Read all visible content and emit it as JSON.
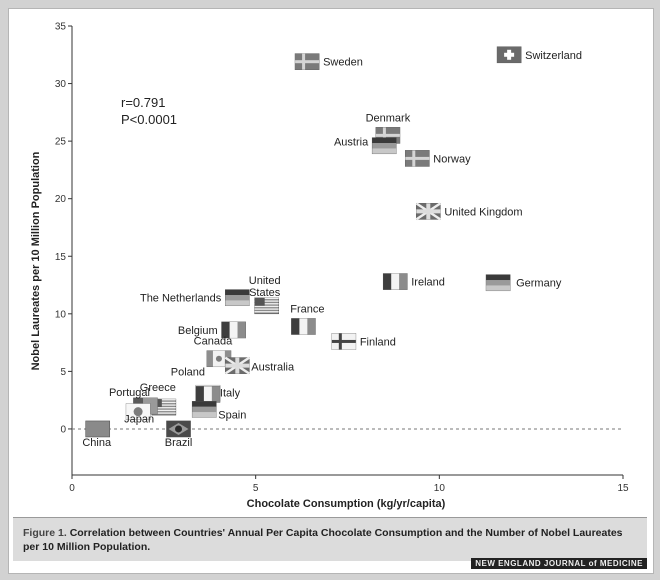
{
  "chart_data": {
    "type": "scatter",
    "xlabel": "Chocolate Consumption (kg/yr/capita)",
    "ylabel": "Nobel Laureates per 10 Million Population",
    "xlim": [
      0,
      15
    ],
    "ylim": [
      -4,
      35
    ],
    "x_ticks": [
      0,
      5,
      10,
      15
    ],
    "y_ticks": [
      0,
      5,
      10,
      15,
      20,
      25,
      30,
      35
    ],
    "zero_line": "dashed",
    "grid": false,
    "annotation": {
      "r": "r=0.791",
      "p": "P<0.0001"
    },
    "points": [
      {
        "name": "Switzerland",
        "x": 11.9,
        "y": 32.5
      },
      {
        "name": "Sweden",
        "x": 6.4,
        "y": 31.9
      },
      {
        "name": "Denmark",
        "x": 8.6,
        "y": 25.5
      },
      {
        "name": "Austria",
        "x": 8.5,
        "y": 24.6
      },
      {
        "name": "Norway",
        "x": 9.4,
        "y": 23.5
      },
      {
        "name": "United Kingdom",
        "x": 9.7,
        "y": 18.9
      },
      {
        "name": "Germany",
        "x": 11.6,
        "y": 12.7
      },
      {
        "name": "Ireland",
        "x": 8.8,
        "y": 12.8
      },
      {
        "name": "United States",
        "x": 5.3,
        "y": 10.7
      },
      {
        "name": "The Netherlands",
        "x": 4.5,
        "y": 11.4
      },
      {
        "name": "France",
        "x": 6.3,
        "y": 8.9
      },
      {
        "name": "Finland",
        "x": 7.4,
        "y": 7.6
      },
      {
        "name": "Belgium",
        "x": 4.4,
        "y": 8.6
      },
      {
        "name": "Canada",
        "x": 4.0,
        "y": 6.1
      },
      {
        "name": "Australia",
        "x": 4.5,
        "y": 5.5
      },
      {
        "name": "Poland",
        "x": 3.7,
        "y": 3.1
      },
      {
        "name": "Italy",
        "x": 3.7,
        "y": 3.0
      },
      {
        "name": "Greece",
        "x": 2.5,
        "y": 1.9
      },
      {
        "name": "Portugal",
        "x": 2.0,
        "y": 2.0
      },
      {
        "name": "Spain",
        "x": 3.6,
        "y": 1.7
      },
      {
        "name": "Japan",
        "x": 1.8,
        "y": 1.5
      },
      {
        "name": "China",
        "x": 0.7,
        "y": 0.0
      },
      {
        "name": "Brazil",
        "x": 2.9,
        "y": 0.0
      }
    ]
  },
  "caption": {
    "label": "Figure 1.",
    "text": "Correlation between Countries' Annual Per Capita Chocolate Consumption and the Number of Nobel Laureates per 10 Million Population."
  },
  "credit": "NEW ENGLAND JOURNAL of MEDICINE"
}
